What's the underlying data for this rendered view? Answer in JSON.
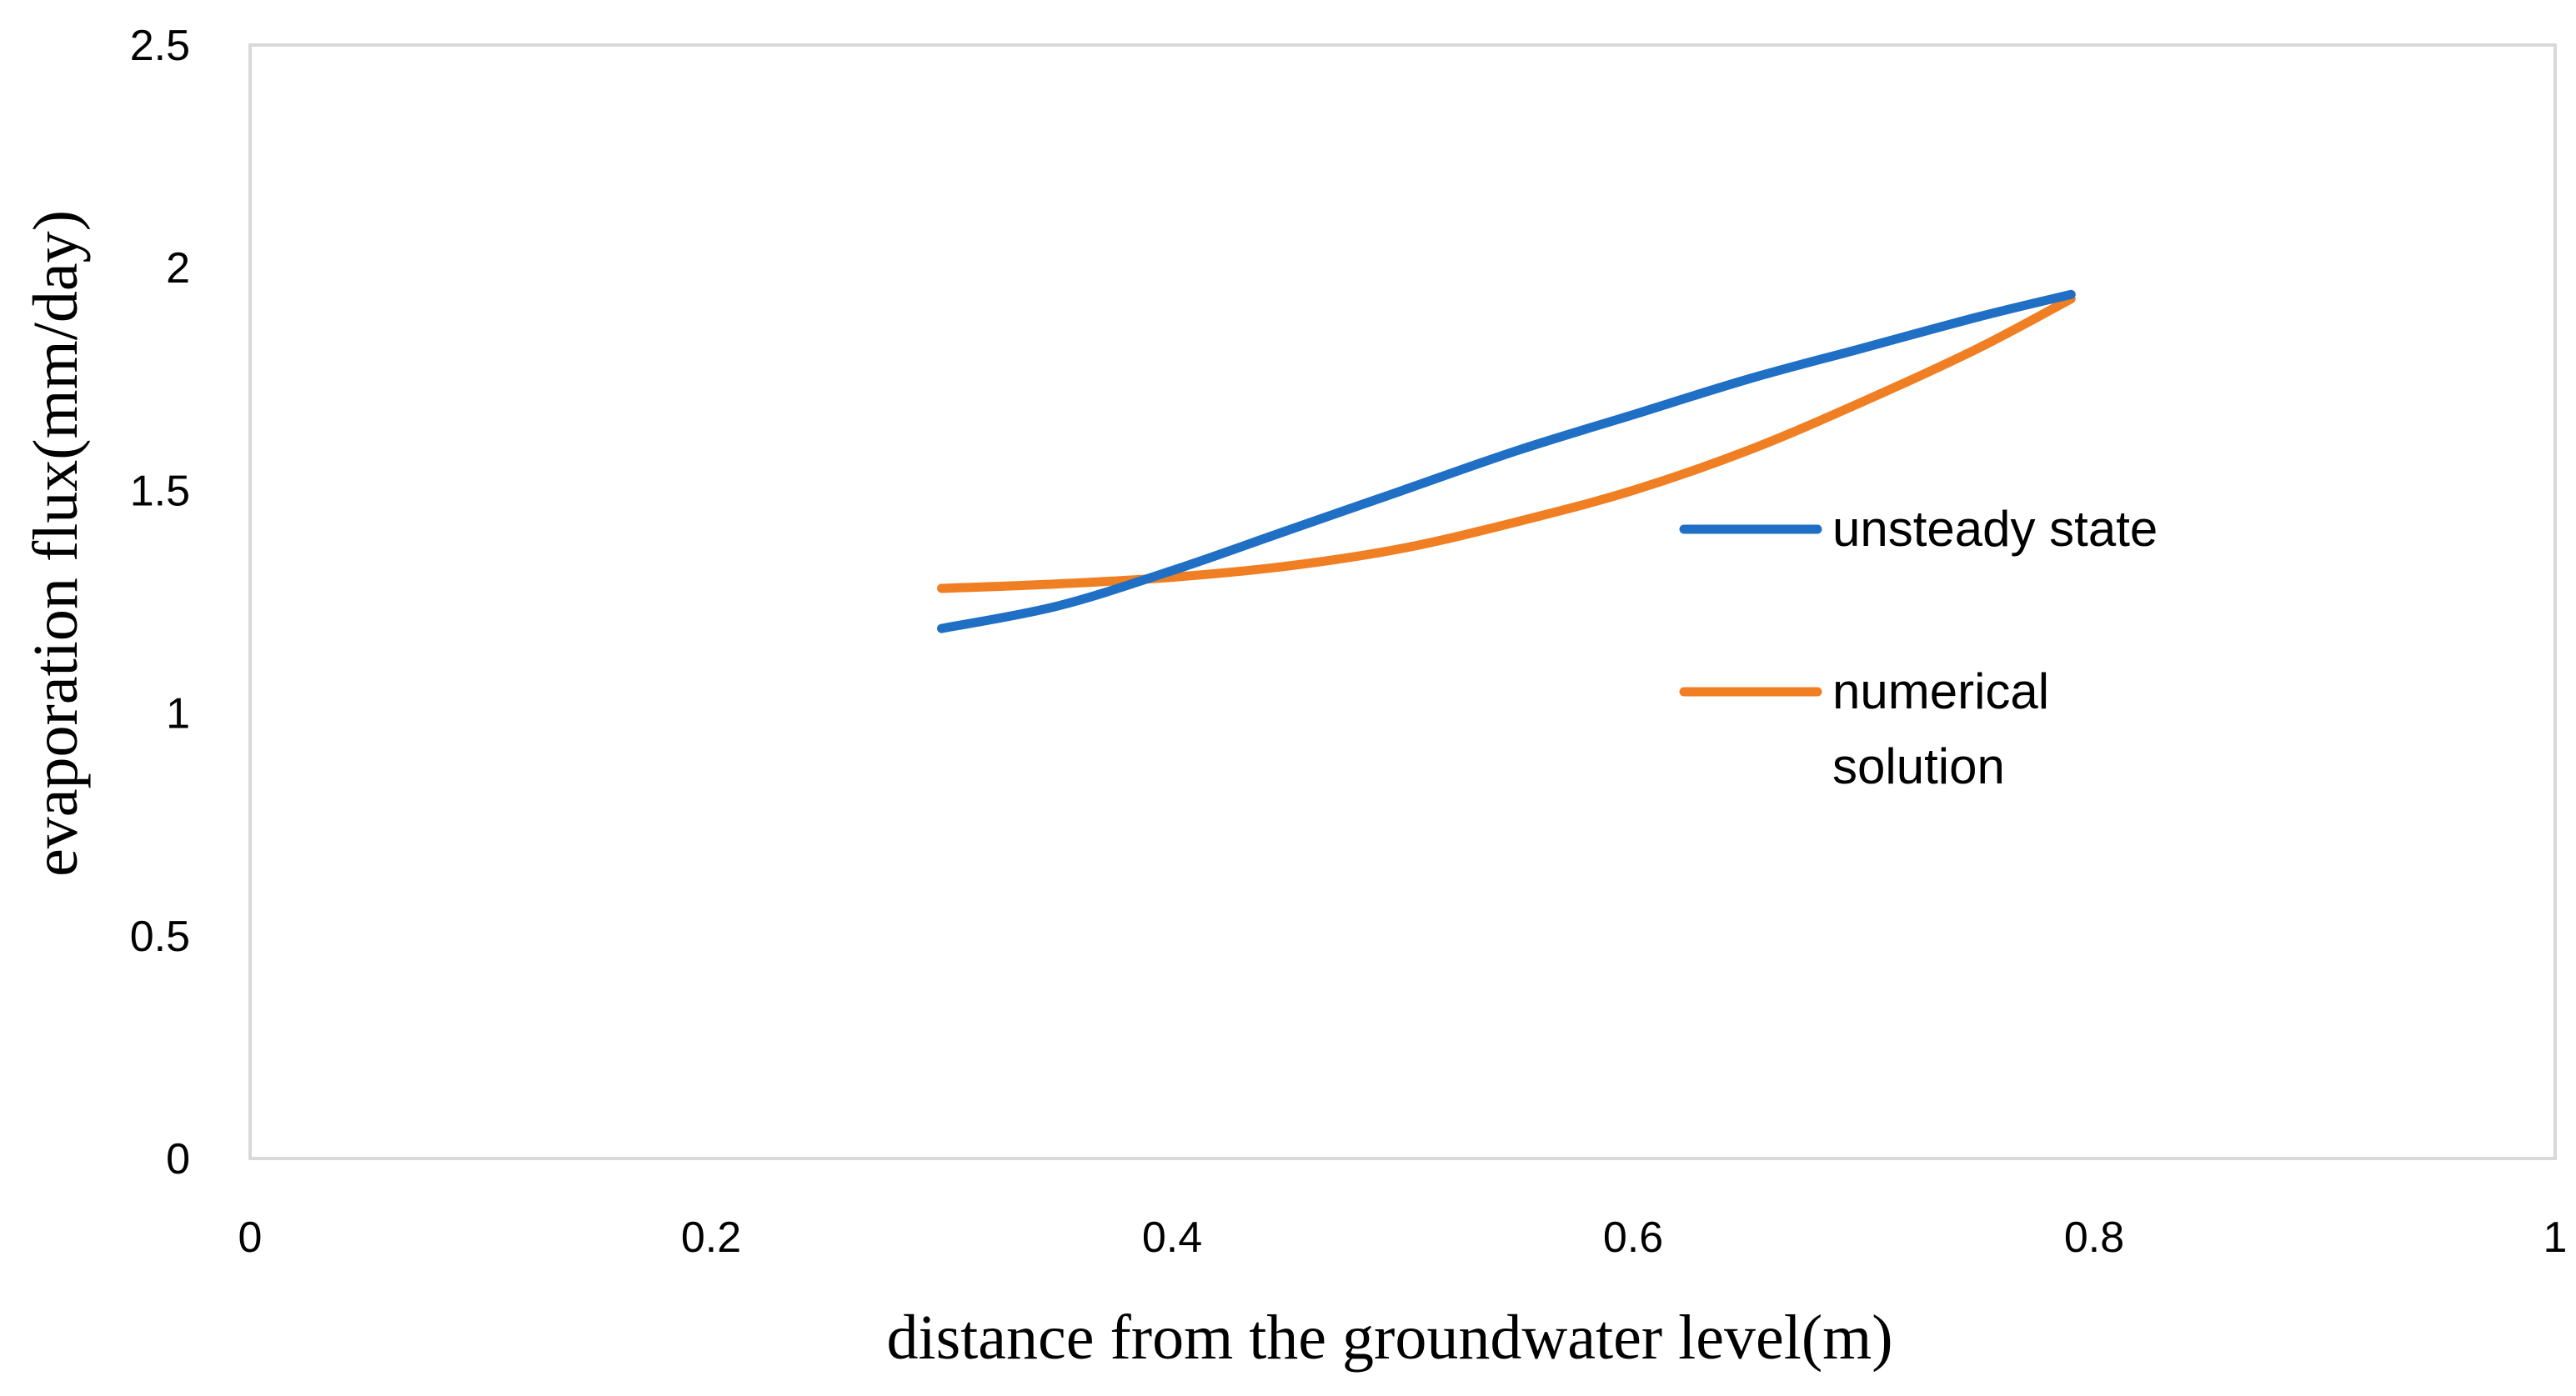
{
  "chart_data": {
    "type": "line",
    "title": "",
    "xlabel": "distance from the groundwater level(m)",
    "ylabel": "evaporation flux(mm/day)",
    "xlim": [
      0,
      1
    ],
    "ylim": [
      0,
      2.5
    ],
    "xticks": [
      0,
      0.2,
      0.4,
      0.6,
      0.8,
      1
    ],
    "yticks": [
      0,
      0.5,
      1,
      1.5,
      2,
      2.5
    ],
    "xtick_labels": [
      "0",
      "0.2",
      "0.4",
      "0.6",
      "0.8",
      "1"
    ],
    "ytick_labels": [
      "0",
      "0.5",
      "1",
      "1.5",
      "2",
      "2.5"
    ],
    "grid": false,
    "legend_position": "right",
    "series": [
      {
        "name": "unsteady state",
        "color": "#1f6fc5",
        "x": [
          0.3,
          0.35,
          0.4,
          0.45,
          0.5,
          0.55,
          0.6,
          0.65,
          0.7,
          0.75,
          0.79
        ],
        "y": [
          1.19,
          1.24,
          1.32,
          1.41,
          1.5,
          1.59,
          1.67,
          1.75,
          1.82,
          1.89,
          1.94
        ]
      },
      {
        "name": "numerical solution",
        "name_lines": [
          "numerical",
          "solution"
        ],
        "color": "#f07f24",
        "x": [
          0.3,
          0.35,
          0.4,
          0.45,
          0.5,
          0.55,
          0.6,
          0.65,
          0.7,
          0.75,
          0.79
        ],
        "y": [
          1.28,
          1.29,
          1.305,
          1.33,
          1.37,
          1.43,
          1.5,
          1.59,
          1.7,
          1.82,
          1.93
        ]
      }
    ]
  }
}
